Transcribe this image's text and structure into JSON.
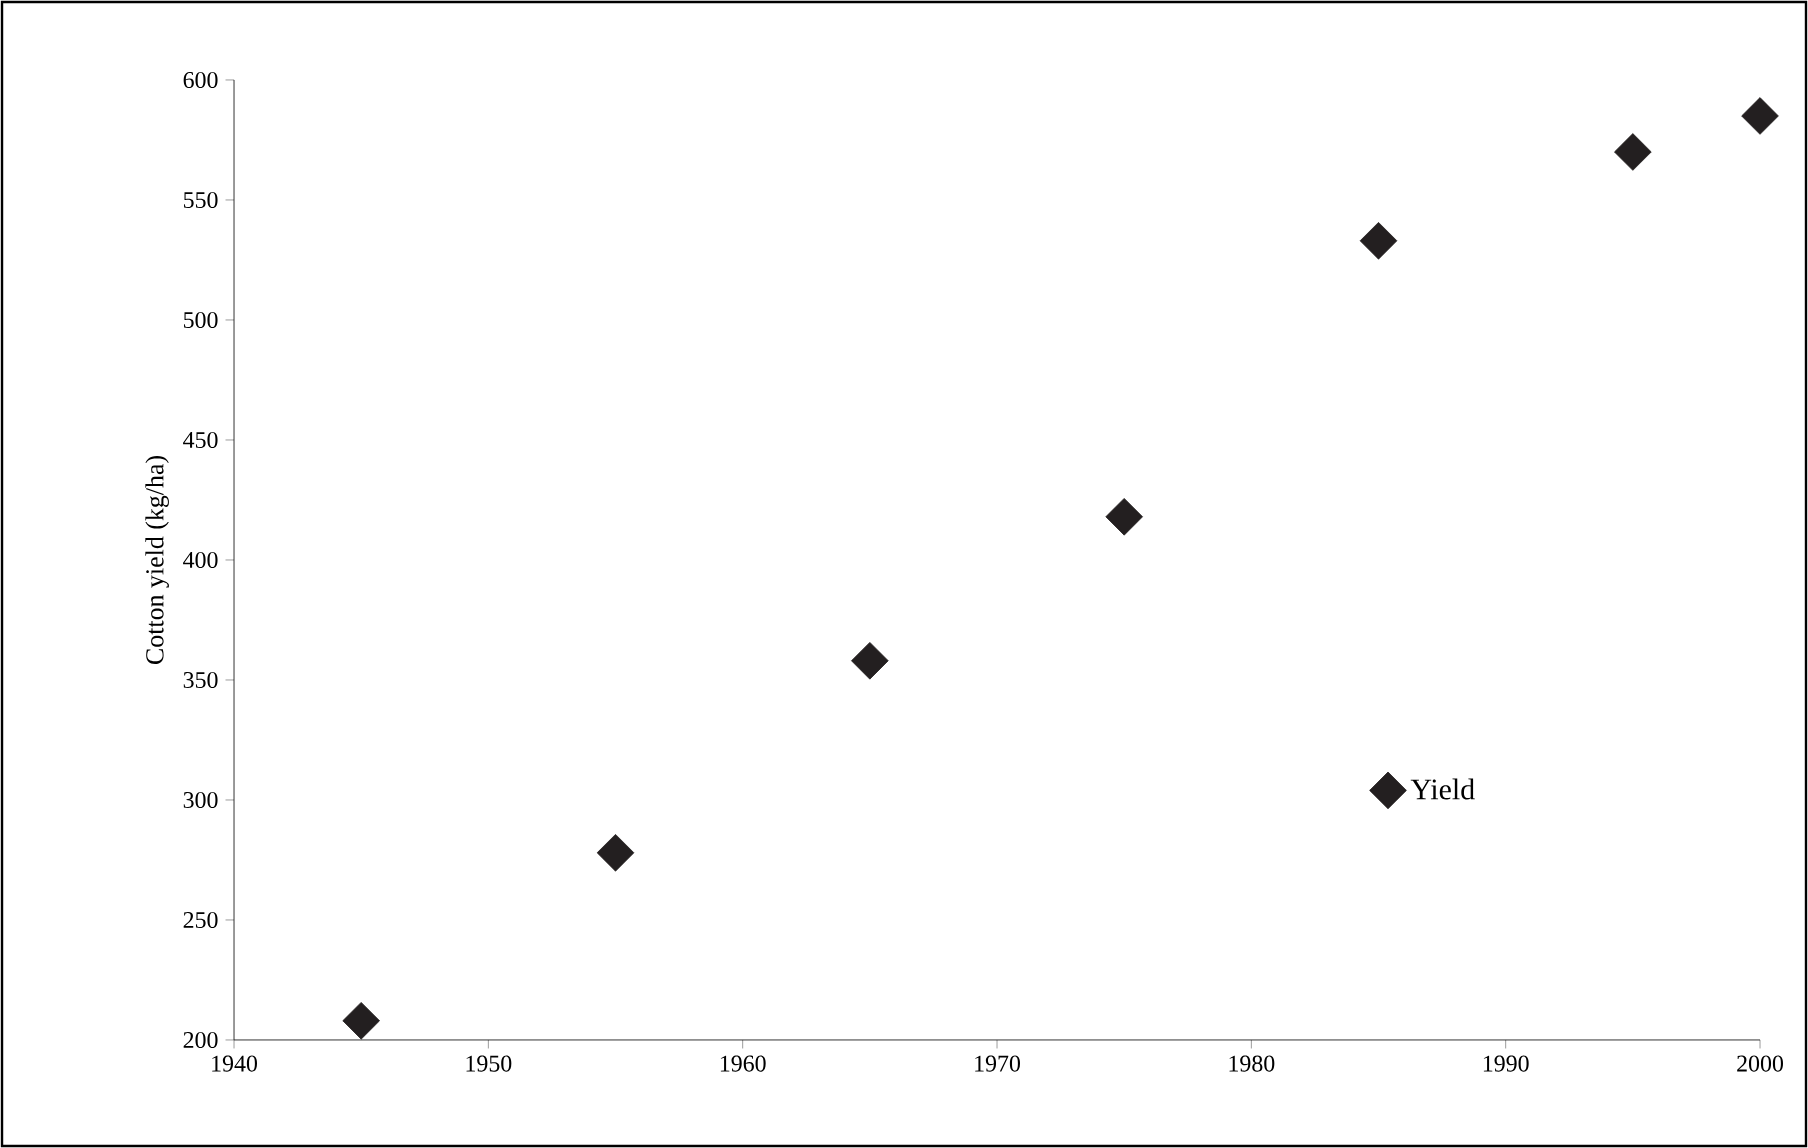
{
  "chart_data": {
    "type": "scatter",
    "ylabel": "Cotton yield (kg/ha)",
    "x": [
      1945,
      1955,
      1965,
      1975,
      1985,
      1995,
      2000
    ],
    "series": [
      {
        "name": "Yield",
        "color": "#231f20",
        "values": [
          208,
          278,
          358,
          418,
          533,
          570,
          585
        ]
      }
    ],
    "xlim": [
      1940,
      2000
    ],
    "xticks": [
      1940,
      1950,
      1960,
      1970,
      1980,
      1990,
      2000
    ],
    "ylim": [
      200,
      600
    ],
    "yticks": [
      200,
      250,
      300,
      350,
      400,
      450,
      500,
      550,
      600
    ],
    "marker": "diamond",
    "legend": "right",
    "grid": false
  }
}
